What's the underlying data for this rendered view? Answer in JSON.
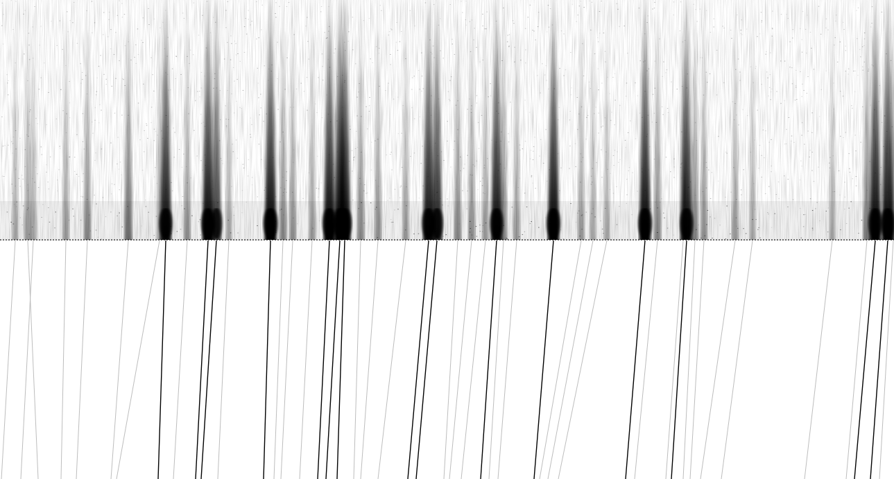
{
  "figure": {
    "type": "burst-track-panel",
    "upper_panel": {
      "kind": "spectrogram-intensity",
      "background_color": "#ffffff",
      "ink_color": "#000000"
    },
    "lower_panel": {
      "kind": "fitted-track-lines",
      "background_color": "#ffffff",
      "strong_line_color": "#000000",
      "faint_line_color": "#bdbdbd"
    },
    "tracks": [
      {
        "x_bottom": 2,
        "x_top": 22,
        "strength": 0.2
      },
      {
        "x_bottom": 30,
        "x_top": 48,
        "strength": 0.2
      },
      {
        "x_bottom": 55,
        "x_top": 40,
        "strength": 0.25
      },
      {
        "x_bottom": 88,
        "x_top": 95,
        "strength": 0.25
      },
      {
        "x_bottom": 110,
        "x_top": 126,
        "strength": 0.35
      },
      {
        "x_bottom": 160,
        "x_top": 185,
        "strength": 0.45
      },
      {
        "x_bottom": 168,
        "x_top": 230,
        "strength": 0.2
      },
      {
        "x_bottom": 228,
        "x_top": 239,
        "strength": 0.9
      },
      {
        "x_bottom": 250,
        "x_top": 270,
        "strength": 0.3
      },
      {
        "x_bottom": 282,
        "x_top": 300,
        "strength": 0.95
      },
      {
        "x_bottom": 290,
        "x_top": 312,
        "strength": 0.7
      },
      {
        "x_bottom": 314,
        "x_top": 330,
        "strength": 0.2
      },
      {
        "x_bottom": 380,
        "x_top": 390,
        "strength": 1.0
      },
      {
        "x_bottom": 395,
        "x_top": 408,
        "strength": 0.35
      },
      {
        "x_bottom": 405,
        "x_top": 422,
        "strength": 0.3
      },
      {
        "x_bottom": 432,
        "x_top": 450,
        "strength": 0.25
      },
      {
        "x_bottom": 458,
        "x_top": 475,
        "strength": 0.95
      },
      {
        "x_bottom": 470,
        "x_top": 490,
        "strength": 0.95
      },
      {
        "x_bottom": 486,
        "x_top": 497,
        "strength": 1.0
      },
      {
        "x_bottom": 510,
        "x_top": 520,
        "strength": 0.35
      },
      {
        "x_bottom": 520,
        "x_top": 545,
        "strength": 0.3
      },
      {
        "x_bottom": 545,
        "x_top": 585,
        "strength": 0.25
      },
      {
        "x_bottom": 588,
        "x_top": 618,
        "strength": 0.9
      },
      {
        "x_bottom": 600,
        "x_top": 630,
        "strength": 0.8
      },
      {
        "x_bottom": 640,
        "x_top": 660,
        "strength": 0.35
      },
      {
        "x_bottom": 648,
        "x_top": 680,
        "strength": 0.3
      },
      {
        "x_bottom": 665,
        "x_top": 700,
        "strength": 0.25
      },
      {
        "x_bottom": 693,
        "x_top": 716,
        "strength": 0.9
      },
      {
        "x_bottom": 705,
        "x_top": 726,
        "strength": 0.35
      },
      {
        "x_bottom": 718,
        "x_top": 745,
        "strength": 0.25
      },
      {
        "x_bottom": 770,
        "x_top": 798,
        "strength": 0.95
      },
      {
        "x_bottom": 778,
        "x_top": 838,
        "strength": 0.25
      },
      {
        "x_bottom": 790,
        "x_top": 855,
        "strength": 0.2
      },
      {
        "x_bottom": 805,
        "x_top": 875,
        "strength": 0.2
      },
      {
        "x_bottom": 902,
        "x_top": 930,
        "strength": 0.95
      },
      {
        "x_bottom": 915,
        "x_top": 948,
        "strength": 0.35
      },
      {
        "x_bottom": 960,
        "x_top": 985,
        "strength": 0.3
      },
      {
        "x_bottom": 968,
        "x_top": 990,
        "strength": 0.9
      },
      {
        "x_bottom": 985,
        "x_top": 1002,
        "strength": 0.35
      },
      {
        "x_bottom": 995,
        "x_top": 1015,
        "strength": 0.3
      },
      {
        "x_bottom": 1010,
        "x_top": 1060,
        "strength": 0.25
      },
      {
        "x_bottom": 1040,
        "x_top": 1085,
        "strength": 0.2
      },
      {
        "x_bottom": 1160,
        "x_top": 1200,
        "strength": 0.2
      },
      {
        "x_bottom": 1220,
        "x_top": 1250,
        "strength": 0.4
      },
      {
        "x_bottom": 1232,
        "x_top": 1262,
        "strength": 0.95
      },
      {
        "x_bottom": 1255,
        "x_top": 1280,
        "strength": 1.0
      },
      {
        "x_bottom": 1268,
        "x_top": 1288,
        "strength": 0.35
      }
    ]
  }
}
